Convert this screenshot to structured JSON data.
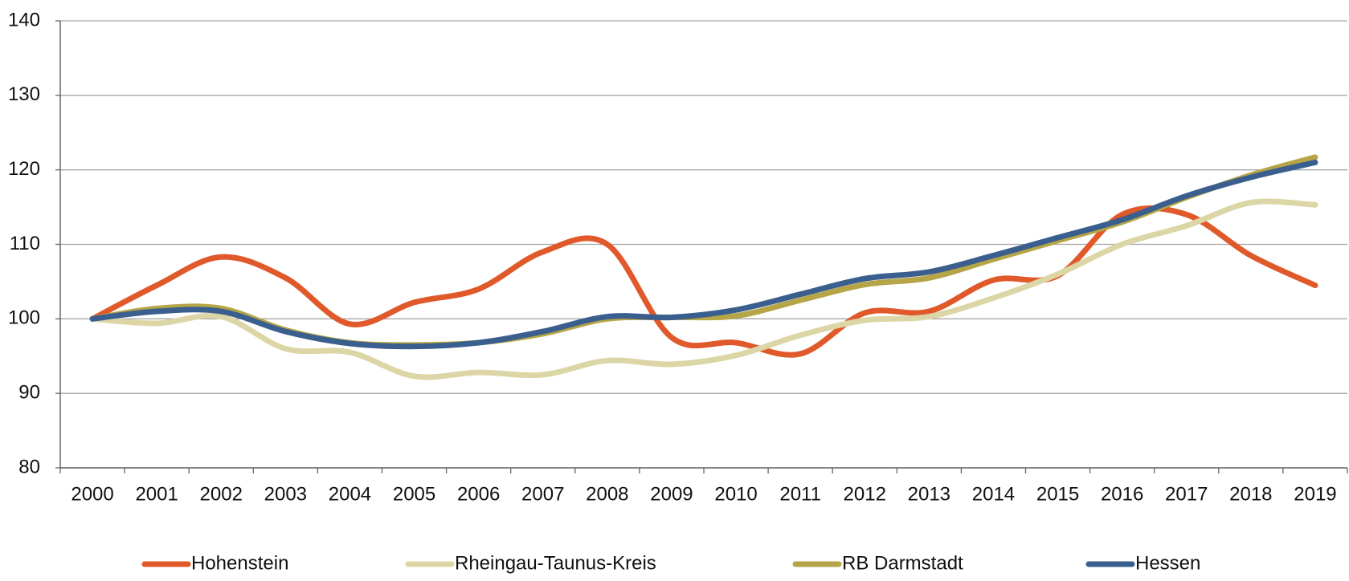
{
  "chart_data": {
    "type": "line",
    "categories": [
      "2000",
      "2001",
      "2002",
      "2003",
      "2004",
      "2005",
      "2006",
      "2007",
      "2008",
      "2009",
      "2010",
      "2011",
      "2012",
      "2013",
      "2014",
      "2015",
      "2016",
      "2017",
      "2018",
      "2019"
    ],
    "series": [
      {
        "name": "Hohenstein",
        "color": "#e0592a",
        "values": [
          100,
          104.5,
          108.3,
          105.5,
          99.3,
          102.2,
          104,
          109,
          110,
          97.5,
          96.8,
          95.3,
          100.8,
          101,
          105.2,
          105.8,
          114,
          114,
          108.5,
          104.5
        ]
      },
      {
        "name": "Rheingau-Taunus-Kreis",
        "color": "#dcd6a6",
        "values": [
          100,
          99.4,
          100.3,
          96,
          95.5,
          92.3,
          92.8,
          92.5,
          94.4,
          93.9,
          95.1,
          97.8,
          99.8,
          100.3,
          102.8,
          106,
          110,
          112.5,
          115.6,
          115.3
        ]
      },
      {
        "name": "RB Darmstadt",
        "color": "#b5a546",
        "values": [
          100,
          101.4,
          101.4,
          98.5,
          96.8,
          96.5,
          96.8,
          98,
          100,
          100.2,
          100.4,
          102.5,
          104.6,
          105.5,
          108,
          110.5,
          113,
          116.3,
          119.3,
          121.7
        ]
      },
      {
        "name": "Hessen",
        "color": "#3a5f8f",
        "values": [
          100,
          101,
          101,
          98.3,
          96.7,
          96.3,
          96.8,
          98.3,
          100.3,
          100.2,
          101.2,
          103.3,
          105.4,
          106.3,
          108.5,
          110.9,
          113.3,
          116.5,
          119,
          121
        ]
      }
    ],
    "ylim": [
      80,
      140
    ],
    "yticks": [
      80,
      90,
      100,
      110,
      120,
      130,
      140
    ],
    "grid": true,
    "legend": "bottom"
  }
}
